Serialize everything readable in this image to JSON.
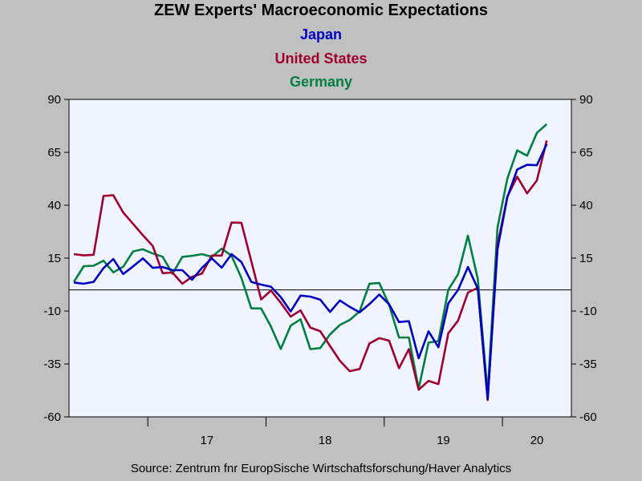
{
  "chart_data": {
    "type": "line",
    "title": "ZEW Experts' Macroeconomic Expectations",
    "subtitles": [
      {
        "text": "Japan",
        "color": "#0000c0"
      },
      {
        "text": "United States",
        "color": "#a00030"
      },
      {
        "text": "Germany",
        "color": "#008040"
      }
    ],
    "source": "Source:  Zentrum fnr EuropSische Wirtschaftsforschung/Haver Analytics",
    "ylim": [
      -60,
      90
    ],
    "yticks": [
      90,
      65,
      40,
      15,
      -10,
      -35,
      -60
    ],
    "ytick_labels": [
      "90",
      "65",
      "40",
      "15",
      "-10",
      "-35",
      "-60"
    ],
    "x_start_month": "2016-05",
    "x_end_month": "2020-07",
    "year_labels": [
      "17",
      "18",
      "19",
      "20"
    ],
    "grid": false,
    "reference_line": 0,
    "plot_background": "#f0f4ff",
    "series": [
      {
        "name": "Japan",
        "color": "#0000c0",
        "values": [
          3.5,
          2.9,
          3.8,
          10.3,
          14.6,
          7.5,
          11.1,
          14.9,
          10.4,
          10.8,
          9.3,
          9.3,
          4.8,
          10.4,
          14.9,
          10.5,
          16.9,
          13.2,
          3.8,
          2.5,
          1.5,
          -3.4,
          -10.2,
          -2.7,
          -3.2,
          -4.6,
          -10.4,
          -5.0,
          -8.0,
          -10.6,
          -6.7,
          -2.2,
          -6.8,
          -15.2,
          -14.8,
          -32.3,
          -19.6,
          -27.1,
          -6.4,
          0.0,
          10.8,
          0.6,
          -51.6,
          19.2,
          43.8,
          56.9,
          59.1,
          58.9,
          68.9
        ]
      },
      {
        "name": "United States",
        "color": "#a00030",
        "values": [
          16.9,
          16.3,
          16.6,
          44.4,
          44.7,
          36.6,
          31.2,
          25.8,
          20.8,
          7.9,
          8.2,
          2.9,
          6.2,
          7.7,
          16.2,
          16.2,
          31.8,
          31.7,
          13.6,
          -4.5,
          -0.3,
          -6.1,
          -12.6,
          -9.7,
          -17.8,
          -19.5,
          -26.5,
          -33.5,
          -38.4,
          -37.4,
          -25.3,
          -22.8,
          -24.0,
          -37.0,
          -28.0,
          -47.2,
          -43.0,
          -44.5,
          -20.5,
          -14.5,
          -1.3,
          1.0,
          -52.1,
          21.1,
          44.1,
          53.5,
          45.6,
          51.7,
          70.6
        ]
      },
      {
        "name": "Germany",
        "color": "#008040",
        "values": [
          3.8,
          11.2,
          11.4,
          13.8,
          8.3,
          10.9,
          18.2,
          19.2,
          17.2,
          15.7,
          7.6,
          15.6,
          16.1,
          16.9,
          15.6,
          19.5,
          16.1,
          5.7,
          -8.7,
          -8.8,
          -17.3,
          -27.9,
          -16.9,
          -13.9,
          -28.0,
          -27.5,
          -21.0,
          -16.6,
          -14.2,
          -10.2,
          2.9,
          3.3,
          -7.1,
          -22.5,
          -22.5,
          -46.7,
          -24.9,
          -24.2,
          0.0,
          7.4,
          25.6,
          5.1,
          -49.1,
          29.3,
          52.6,
          65.9,
          63.4,
          74.2,
          78.3
        ]
      }
    ]
  }
}
